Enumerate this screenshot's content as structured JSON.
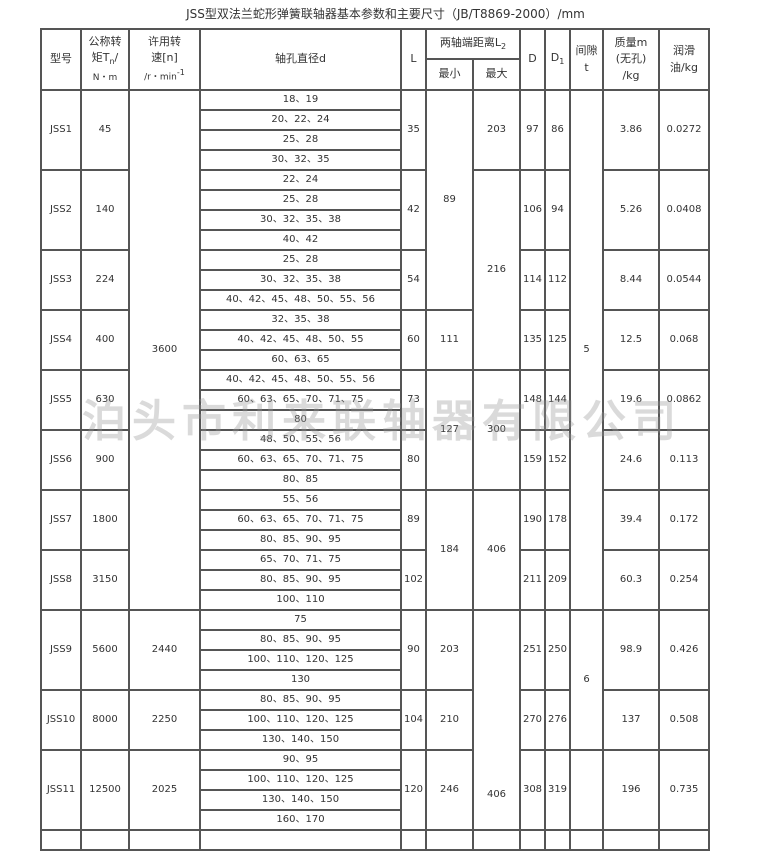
{
  "title": "JSS型双法兰蛇形弹簧联轴器基本参数和主要尺寸（JB/T8869-2000）/mm",
  "watermark": "泊头市利来联轴器有限公司",
  "headers": {
    "model": "型号",
    "torque": [
      "公称转",
      "矩T",
      "n",
      "/",
      "N・m"
    ],
    "speed": [
      "许用转",
      "速[n]",
      "/r・min",
      "-1"
    ],
    "bore": "轴孔直径d",
    "L": "L",
    "L2": [
      "两轴端距离L",
      "2"
    ],
    "L2_min": "最小",
    "L2_max": "最大",
    "D": "D",
    "D1": [
      "D",
      "1"
    ],
    "gap": [
      "间隙",
      "t"
    ],
    "mass": [
      "质量m",
      "(无孔)",
      "/kg"
    ],
    "oil": [
      "润滑",
      "油/kg"
    ]
  },
  "models": [
    {
      "model": "JSS1",
      "torque": "45",
      "bores": [
        "18、19",
        "20、22、24",
        "25、28",
        "30、32、35"
      ],
      "L": "35",
      "D": "97",
      "D1": "86",
      "mass": "3.86",
      "oil": "0.0272"
    },
    {
      "model": "JSS2",
      "torque": "140",
      "bores": [
        "22、24",
        "25、28",
        "30、32、35、38",
        "40、42"
      ],
      "L": "42",
      "D": "106",
      "D1": "94",
      "mass": "5.26",
      "oil": "0.0408"
    },
    {
      "model": "JSS3",
      "torque": "224",
      "bores": [
        "25、28",
        "30、32、35、38",
        "40、42、45、48、50、55、56"
      ],
      "L": "54",
      "D": "114",
      "D1": "112",
      "mass": "8.44",
      "oil": "0.0544"
    },
    {
      "model": "JSS4",
      "torque": "400",
      "bores": [
        "32、35、38",
        "40、42、45、48、50、55",
        "60、63、65"
      ],
      "L": "60",
      "D": "135",
      "D1": "125",
      "mass": "12.5",
      "oil": "0.068"
    },
    {
      "model": "JSS5",
      "torque": "630",
      "bores": [
        "40、42、45、48、50、55、56",
        "60、63、65、70、71、75",
        "80"
      ],
      "L": "73",
      "D": "148",
      "D1": "144",
      "mass": "19.6",
      "oil": "0.0862"
    },
    {
      "model": "JSS6",
      "torque": "900",
      "bores": [
        "48、50、55、56",
        "60、63、65、70、71、75",
        "80、85"
      ],
      "L": "80",
      "D": "159",
      "D1": "152",
      "mass": "24.6",
      "oil": "0.113"
    },
    {
      "model": "JSS7",
      "torque": "1800",
      "bores": [
        "55、56",
        "60、63、65、70、71、75",
        "80、85、90、95"
      ],
      "L": "89",
      "D": "190",
      "D1": "178",
      "mass": "39.4",
      "oil": "0.172"
    },
    {
      "model": "JSS8",
      "torque": "3150",
      "bores": [
        "65、70、71、75",
        "80、85、90、95",
        "100、110"
      ],
      "L": "102",
      "D": "211",
      "D1": "209",
      "mass": "60.3",
      "oil": "0.254"
    },
    {
      "model": "JSS9",
      "torque": "5600",
      "bores": [
        "75",
        "80、85、90、95",
        "100、110、120、125",
        "130"
      ],
      "L": "90",
      "D": "251",
      "D1": "250",
      "mass": "98.9",
      "oil": "0.426"
    },
    {
      "model": "JSS10",
      "torque": "8000",
      "bores": [
        "80、85、90、95",
        "100、110、120、125",
        "130、140、150"
      ],
      "L": "104",
      "D": "270",
      "D1": "276",
      "mass": "137",
      "oil": "0.508"
    },
    {
      "model": "JSS11",
      "torque": "12500",
      "bores": [
        "90、95",
        "100、110、120、125",
        "130、140、150",
        "160、170"
      ],
      "L": "120",
      "D": "308",
      "D1": "319",
      "mass": "196",
      "oil": "0.735"
    }
  ],
  "merged": {
    "speed": [
      {
        "value": "3600",
        "models": 8
      },
      {
        "value": "2440",
        "models": 1
      },
      {
        "value": "2250",
        "models": 1
      },
      {
        "value": "2025",
        "models": 1
      }
    ],
    "L2_min": [
      {
        "value": "89",
        "models": 3
      },
      {
        "value": "111",
        "models": 1
      },
      {
        "value": "127",
        "models": 2
      },
      {
        "value": "184",
        "models": 2
      },
      {
        "value": "203",
        "models": 1
      },
      {
        "value": "210",
        "models": 1
      },
      {
        "value": "246",
        "models": 1
      }
    ],
    "L2_max": [
      {
        "value": "203",
        "models": 1
      },
      {
        "value": "216",
        "models": 3
      },
      {
        "value": "300",
        "models": 2
      },
      {
        "value": "406",
        "models": 2
      },
      {
        "value": "406",
        "models": 3
      }
    ],
    "gap": [
      {
        "value": "5",
        "models": 8
      },
      {
        "value": "6",
        "models": 2
      },
      {
        "value": "",
        "models": 1
      }
    ]
  }
}
